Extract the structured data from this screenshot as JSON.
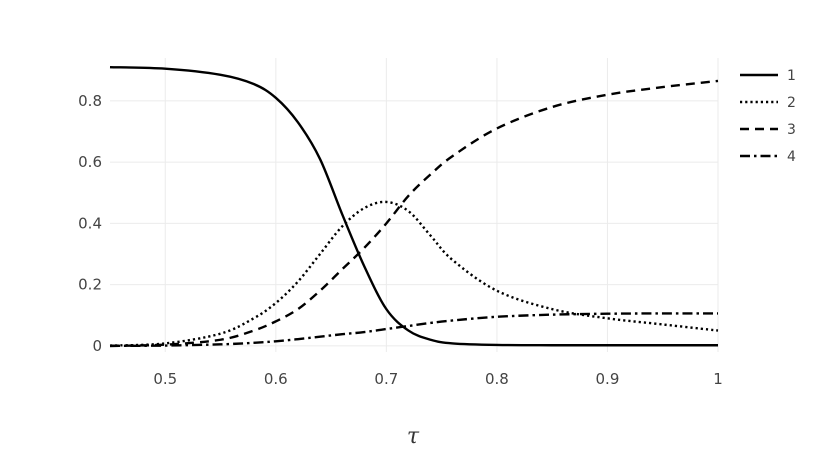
{
  "chart_data": {
    "type": "line",
    "title": "",
    "xlabel": "τ",
    "ylabel": "",
    "xlim": [
      0.45,
      1.0
    ],
    "ylim": [
      -0.02,
      0.94
    ],
    "grid": true,
    "legend_position": "top-right",
    "x_ticks": [
      0.5,
      0.6,
      0.7,
      0.8,
      0.9,
      1.0
    ],
    "x_tick_labels": [
      "0.5",
      "0.6",
      "0.7",
      "0.8",
      "0.9",
      "1"
    ],
    "y_ticks": [
      0,
      0.2,
      0.4,
      0.6,
      0.8
    ],
    "y_tick_labels": [
      "0",
      "0.2",
      "0.4",
      "0.6",
      "0.8"
    ],
    "x": [
      0.45,
      0.5,
      0.55,
      0.58,
      0.6,
      0.62,
      0.64,
      0.66,
      0.68,
      0.7,
      0.72,
      0.74,
      0.76,
      0.8,
      0.85,
      0.9,
      0.95,
      1.0
    ],
    "series": [
      {
        "name": "1",
        "dash": "solid",
        "values": [
          0.91,
          0.905,
          0.885,
          0.855,
          0.81,
          0.73,
          0.61,
          0.43,
          0.26,
          0.12,
          0.05,
          0.02,
          0.008,
          0.003,
          0.002,
          0.002,
          0.002,
          0.002
        ]
      },
      {
        "name": "2",
        "dash": "dotted",
        "values": [
          0.001,
          0.008,
          0.04,
          0.09,
          0.14,
          0.21,
          0.3,
          0.39,
          0.45,
          0.47,
          0.44,
          0.36,
          0.28,
          0.18,
          0.12,
          0.09,
          0.07,
          0.05
        ]
      },
      {
        "name": "3",
        "dash": "dashed",
        "values": [
          0.0,
          0.004,
          0.02,
          0.05,
          0.08,
          0.12,
          0.18,
          0.25,
          0.32,
          0.4,
          0.49,
          0.56,
          0.62,
          0.71,
          0.78,
          0.82,
          0.845,
          0.865
        ]
      },
      {
        "name": "4",
        "dash": "dashdot",
        "values": [
          0.0,
          0.001,
          0.005,
          0.01,
          0.015,
          0.022,
          0.03,
          0.038,
          0.045,
          0.055,
          0.065,
          0.075,
          0.083,
          0.095,
          0.102,
          0.105,
          0.106,
          0.106
        ]
      }
    ]
  }
}
